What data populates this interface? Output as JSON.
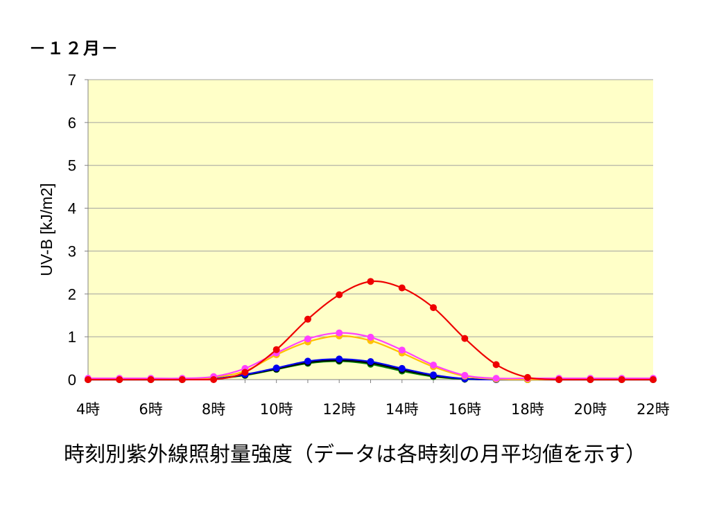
{
  "month_title": "－１２月－",
  "caption": "時刻別紫外線照射量強度（データは各時刻の月平均値を示す）",
  "chart_data": {
    "type": "line",
    "title": "－１２月－",
    "xlabel": "",
    "ylabel": "UV-B  [kJ/m2]",
    "ylim": [
      0,
      7
    ],
    "yticks": [
      0,
      1,
      2,
      3,
      4,
      5,
      6,
      7
    ],
    "xlim": [
      4,
      22
    ],
    "xticks": [
      4,
      6,
      8,
      10,
      12,
      14,
      16,
      18,
      20,
      22
    ],
    "xtick_labels": [
      "4時",
      "6時",
      "8時",
      "10時",
      "12時",
      "14時",
      "16時",
      "18時",
      "20時",
      "22時"
    ],
    "grid": "horizontal",
    "legend": "none",
    "plot_background": "#ffffc8",
    "x": [
      4,
      5,
      6,
      7,
      8,
      9,
      10,
      11,
      12,
      13,
      14,
      15,
      16,
      17,
      18,
      19,
      20,
      21,
      22
    ],
    "series": [
      {
        "color": "#008000",
        "values": [
          0,
          0,
          0,
          0,
          0.02,
          0.1,
          0.24,
          0.38,
          0.43,
          0.36,
          0.2,
          0.07,
          0.01,
          0,
          0,
          0,
          0,
          0,
          0
        ]
      },
      {
        "color": "#000000",
        "values": [
          0,
          0,
          0,
          0,
          0.02,
          0.11,
          0.25,
          0.4,
          0.45,
          0.39,
          0.23,
          0.09,
          0.02,
          0,
          0,
          0,
          0,
          0,
          0
        ]
      },
      {
        "color": "#0000ee",
        "values": [
          0,
          0,
          0,
          0,
          0.02,
          0.12,
          0.27,
          0.43,
          0.48,
          0.42,
          0.26,
          0.11,
          0.02,
          0,
          0,
          0,
          0,
          0,
          0
        ]
      },
      {
        "color": "#ffc000",
        "values": [
          0,
          0,
          0,
          0,
          0.05,
          0.2,
          0.58,
          0.88,
          1.02,
          0.91,
          0.62,
          0.3,
          0.08,
          0.01,
          0,
          0,
          0,
          0,
          0
        ]
      },
      {
        "color": "#ff40ff",
        "values": [
          0.03,
          0.03,
          0.03,
          0.03,
          0.07,
          0.26,
          0.62,
          0.95,
          1.09,
          0.99,
          0.69,
          0.34,
          0.1,
          0.03,
          0.03,
          0.03,
          0.03,
          0.03,
          0.03
        ]
      },
      {
        "color": "#ee0000",
        "values": [
          0,
          0,
          0,
          0,
          0,
          0.17,
          0.7,
          1.41,
          1.98,
          2.29,
          2.14,
          1.68,
          0.96,
          0.35,
          0.05,
          0,
          0,
          0,
          0
        ]
      }
    ]
  }
}
